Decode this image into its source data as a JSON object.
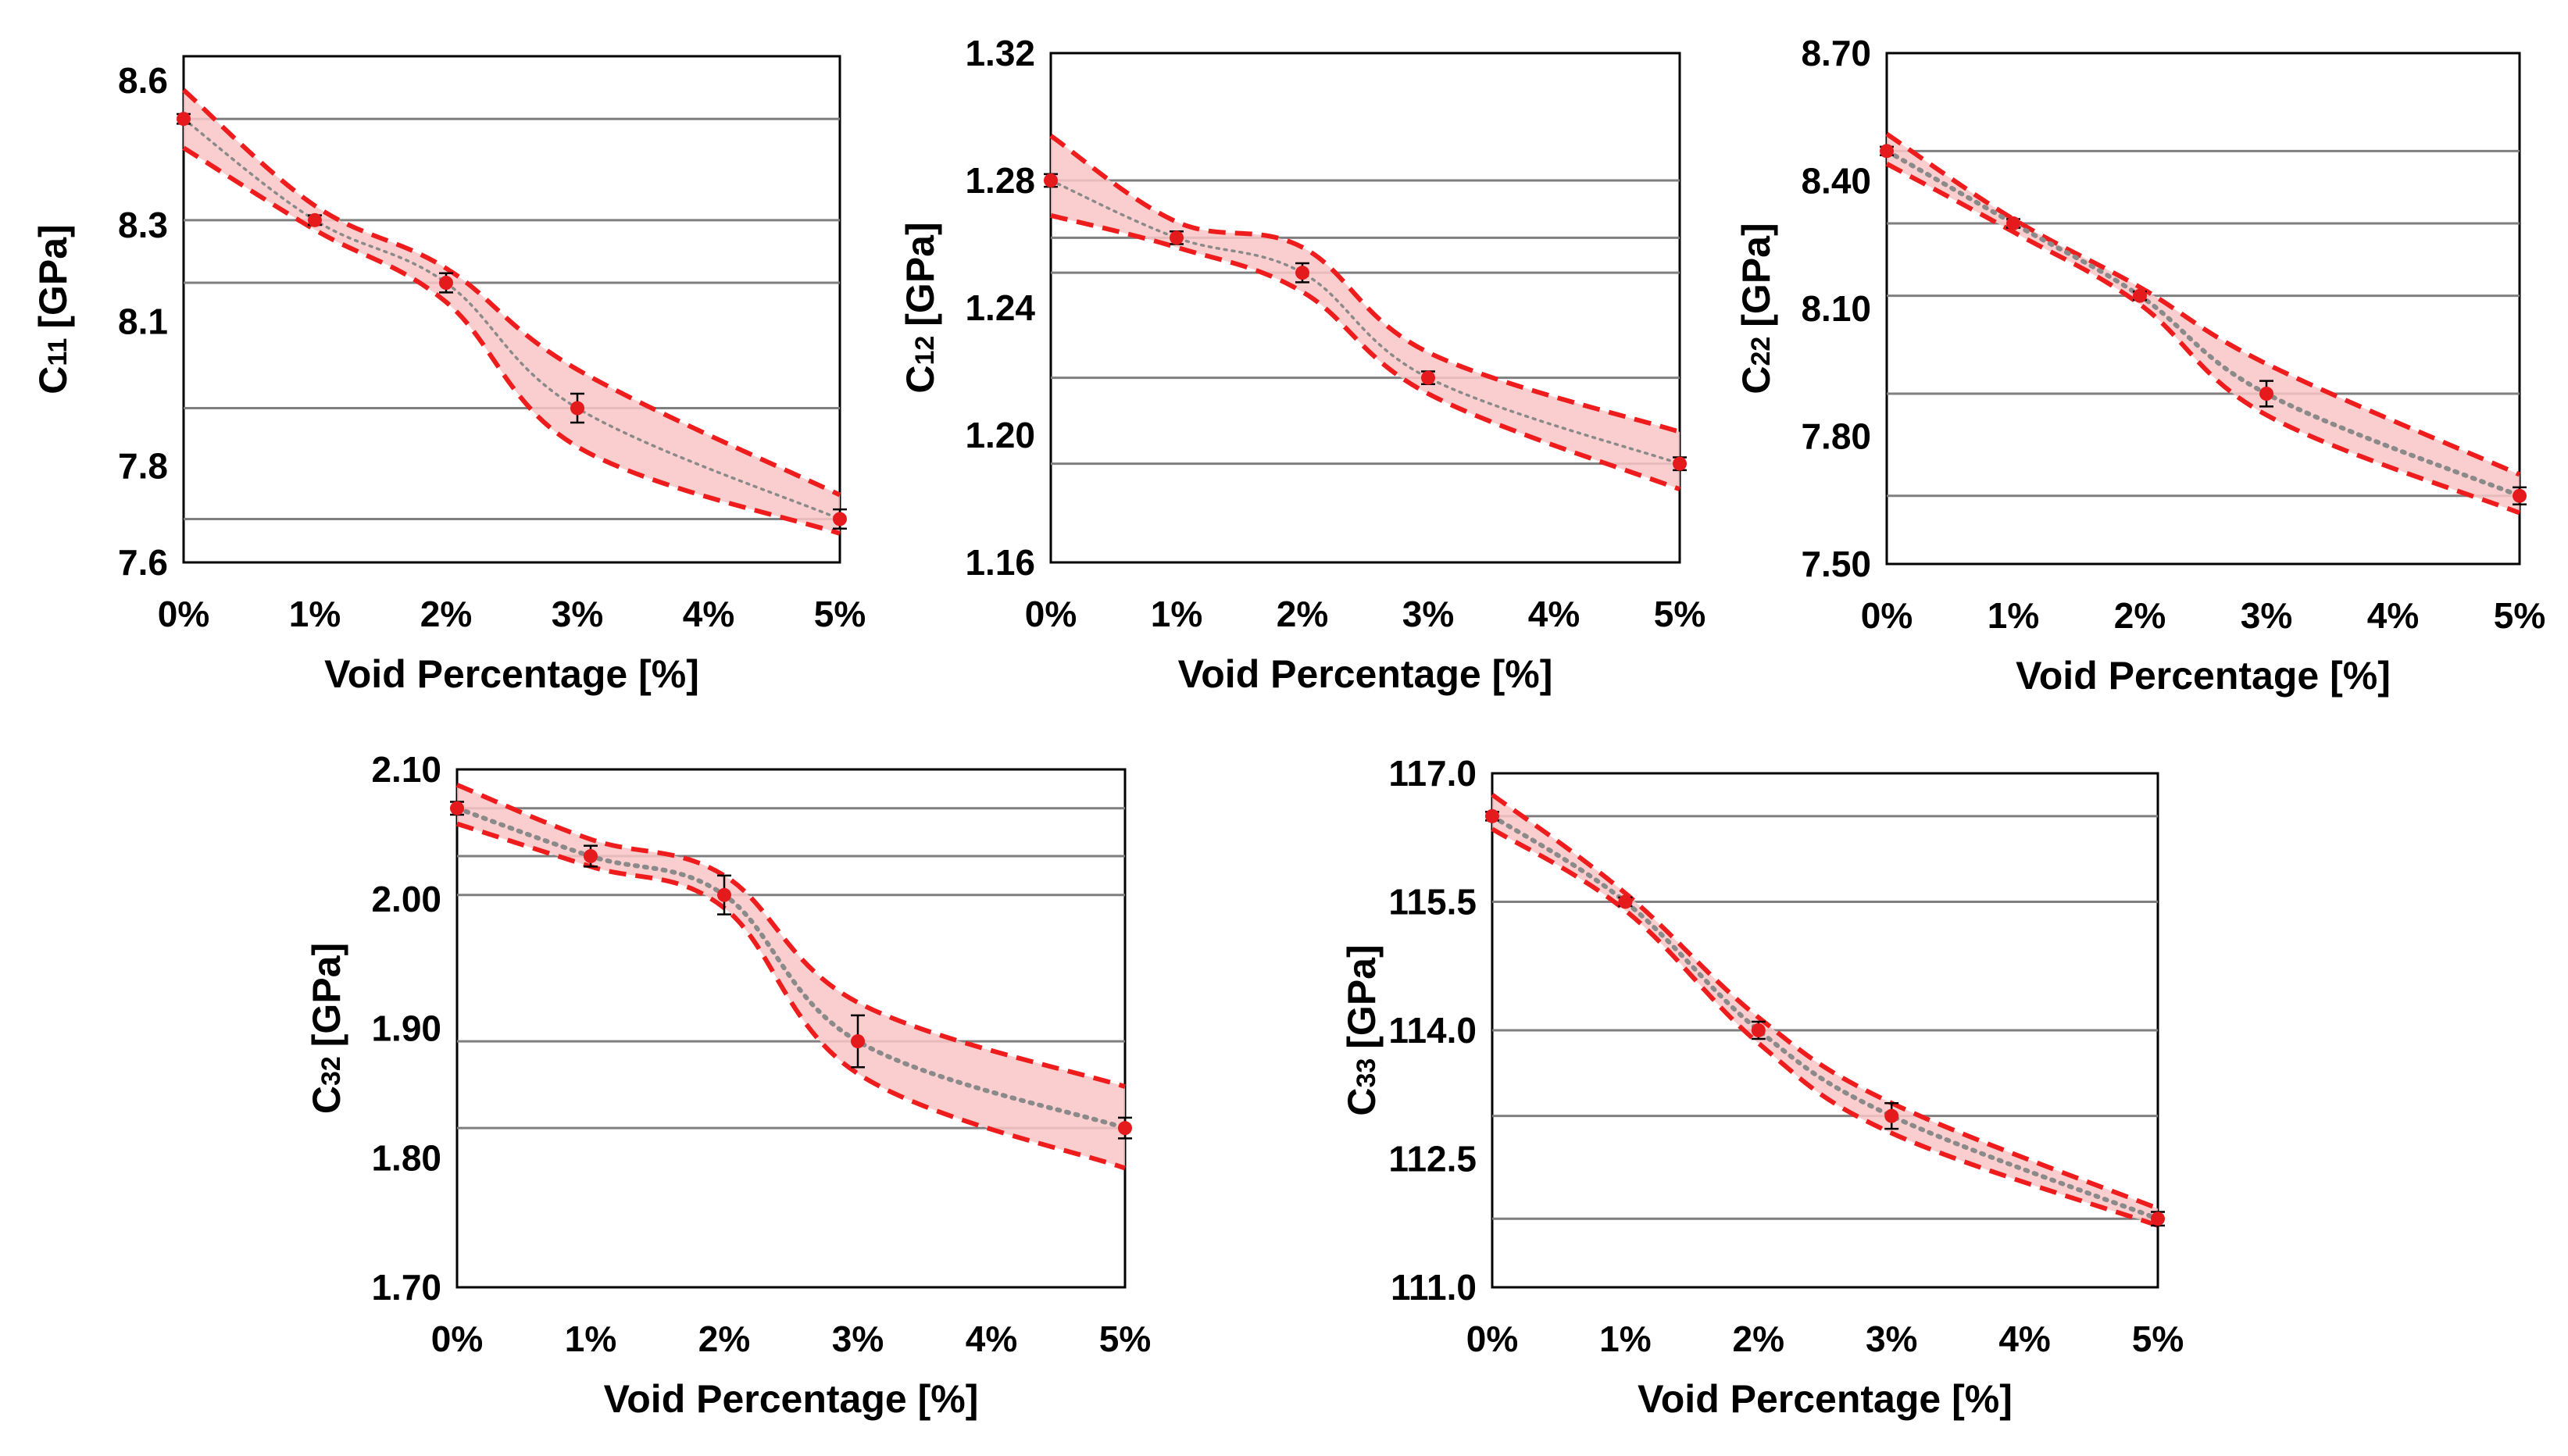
{
  "colors": {
    "marker": "#e41a1c",
    "band_fill": "#f9c6c6",
    "band_edge": "#ee1c1c",
    "trend": "#8a8a8a",
    "gridline": "#7f7f7f",
    "frame": "#000000"
  },
  "chart_data": [
    {
      "type": "line",
      "ylabel_main": "C",
      "ylabel_sub": "11",
      "ylabel_unit": "[GPa]",
      "xlabel": "Void Percentage [%]",
      "categories": [
        "0%",
        "1%",
        "2%",
        "3%",
        "4%",
        "5%"
      ],
      "x": [
        0,
        1,
        2,
        3,
        5
      ],
      "values": [
        8.52,
        8.31,
        8.18,
        7.92,
        7.69
      ],
      "errors": [
        0.01,
        0.01,
        0.02,
        0.03,
        0.02
      ],
      "band_upper": [
        8.58,
        8.34,
        8.21,
        8.0,
        7.74
      ],
      "band_lower": [
        8.46,
        8.29,
        8.14,
        7.84,
        7.66
      ],
      "yticks": [
        7.6,
        7.8,
        8.1,
        8.3,
        8.6
      ],
      "ytick_labels": [
        "7.6",
        "7.8",
        "8.1",
        "8.3",
        "8.6"
      ],
      "ylim": [
        7.6,
        8.65
      ],
      "xlim": [
        0,
        5
      ]
    },
    {
      "type": "line",
      "ylabel_main": "C",
      "ylabel_sub": "12",
      "ylabel_unit": "[GPa]",
      "xlabel": "Void Percentage [%]",
      "categories": [
        "0%",
        "1%",
        "2%",
        "3%",
        "4%",
        "5%"
      ],
      "x": [
        0,
        1,
        2,
        3,
        5
      ],
      "values": [
        1.28,
        1.262,
        1.251,
        1.218,
        1.191
      ],
      "errors": [
        0.002,
        0.002,
        0.003,
        0.002,
        0.002
      ],
      "band_upper": [
        1.294,
        1.267,
        1.259,
        1.226,
        1.201
      ],
      "band_lower": [
        1.269,
        1.259,
        1.245,
        1.213,
        1.183
      ],
      "yticks": [
        1.16,
        1.2,
        1.24,
        1.28,
        1.32
      ],
      "ytick_labels": [
        "1.16",
        "1.20",
        "1.24",
        "1.28",
        "1.32"
      ],
      "ylim": [
        1.16,
        1.32
      ],
      "xlim": [
        0,
        5
      ]
    },
    {
      "type": "line",
      "ylabel_main": "C",
      "ylabel_sub": "22",
      "ylabel_unit": "[GPa]",
      "xlabel": "Void Percentage [%]",
      "categories": [
        "0%",
        "1%",
        "2%",
        "3%",
        "4%",
        "5%"
      ],
      "x": [
        0,
        1,
        2,
        3,
        5
      ],
      "values": [
        8.47,
        8.3,
        8.13,
        7.9,
        7.66
      ],
      "errors": [
        0.01,
        0.01,
        0.01,
        0.03,
        0.02
      ],
      "band_upper": [
        8.51,
        8.31,
        8.15,
        7.97,
        7.71
      ],
      "band_lower": [
        8.44,
        8.28,
        8.11,
        7.85,
        7.62
      ],
      "yticks": [
        7.5,
        7.8,
        8.1,
        8.4,
        8.7
      ],
      "ytick_labels": [
        "7.50",
        "7.80",
        "8.10",
        "8.40",
        "8.70"
      ],
      "ylim": [
        7.5,
        8.7
      ],
      "xlim": [
        0,
        5
      ]
    },
    {
      "type": "line",
      "ylabel_main": "C",
      "ylabel_sub": "32",
      "ylabel_unit": "[GPa]",
      "xlabel": "Void Percentage [%]",
      "categories": [
        "0%",
        "1%",
        "2%",
        "3%",
        "4%",
        "5%"
      ],
      "x": [
        0,
        1,
        2,
        3,
        5
      ],
      "values": [
        2.07,
        2.033,
        2.003,
        1.89,
        1.823
      ],
      "errors": [
        0.005,
        0.008,
        0.015,
        0.02,
        0.008
      ],
      "band_upper": [
        2.088,
        2.046,
        2.018,
        1.92,
        1.855
      ],
      "band_lower": [
        2.058,
        2.025,
        1.993,
        1.865,
        1.792
      ],
      "yticks": [
        1.7,
        1.8,
        1.9,
        2.0,
        2.1
      ],
      "ytick_labels": [
        "1.70",
        "1.80",
        "1.90",
        "2.00",
        "2.10"
      ],
      "ylim": [
        1.7,
        2.1
      ],
      "xlim": [
        0,
        5
      ]
    },
    {
      "type": "line",
      "ylabel_main": "C",
      "ylabel_sub": "33",
      "ylabel_unit": "[GPa]",
      "xlabel": "Void Percentage [%]",
      "categories": [
        "0%",
        "1%",
        "2%",
        "3%",
        "4%",
        "5%"
      ],
      "x": [
        0,
        1,
        2,
        3,
        5
      ],
      "values": [
        116.5,
        115.5,
        114.0,
        113.0,
        111.8
      ],
      "errors": [
        0.05,
        0.05,
        0.1,
        0.15,
        0.08
      ],
      "band_upper": [
        116.75,
        115.6,
        114.15,
        113.15,
        111.92
      ],
      "band_lower": [
        116.35,
        115.4,
        113.85,
        112.8,
        111.72
      ],
      "yticks": [
        111.0,
        112.5,
        114.0,
        115.5,
        117.0
      ],
      "ytick_labels": [
        "111.0",
        "112.5",
        "114.0",
        "115.5",
        "117.0"
      ],
      "ylim": [
        111.0,
        117.0
      ],
      "xlim": [
        0,
        5
      ]
    }
  ]
}
